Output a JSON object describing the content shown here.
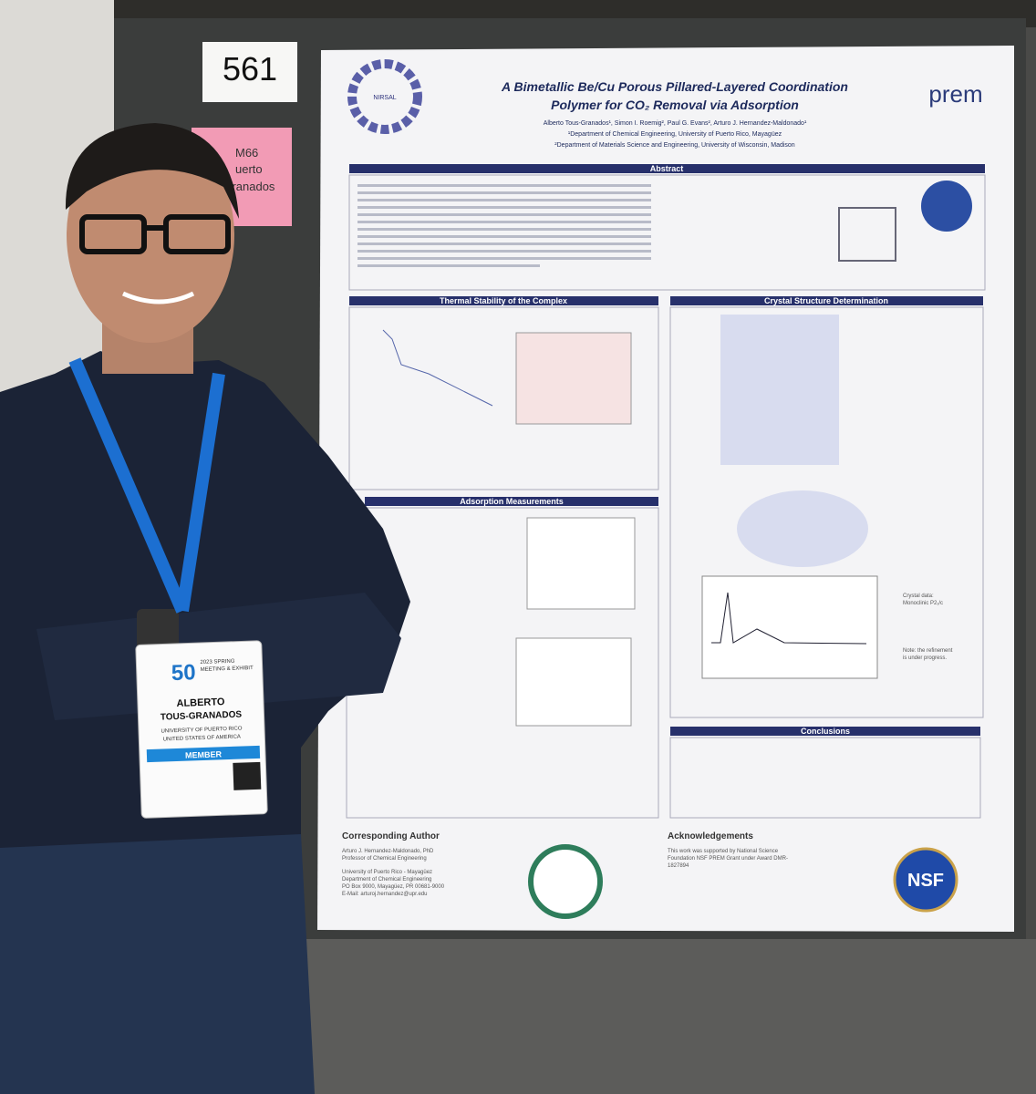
{
  "booth_number": "561",
  "pink_sign": [
    "M66",
    "uerto",
    "-Granados"
  ],
  "poster": {
    "title": [
      "A Bimetallic Be/Cu Porous Pillared-Layered Coordination",
      "Polymer for CO₂ Removal via Adsorption"
    ],
    "authors": "Alberto Tous-Granados¹, Simon I. Roemig², Paul G. Evans², Arturo J. Hernandez-Maldonado¹",
    "affiliations": [
      "¹Department of Chemical Engineering, University of Puerto Rico, Mayagüez",
      "²Department of Materials Science and Engineering, University of Wisconsin, Madison"
    ],
    "logo_left": "NIRSAL",
    "logo_right": "prem",
    "sections": {
      "abstract": "Abstract",
      "thermal": "Thermal Stability of the Complex",
      "crystal": "Crystal Structure Determination",
      "adsorption": "Adsorption Measurements",
      "conclusions": "Conclusions"
    },
    "crystal_note": [
      "Crystal data:",
      "Monoclinic P2₁/c",
      "Note: the refinement",
      "is under progress."
    ],
    "corresponding_author": {
      "heading": "Corresponding Author",
      "lines": [
        "Arturo J. Hernandez-Maldonado, PhD",
        "Professor of Chemical Engineering",
        "University of Puerto Rico - Mayagüez",
        "Department of Chemical Engineering",
        "PO Box 9000, Mayagüez, PR 00681-9000",
        "E-Mail: arturoj.hernandez@upr.edu"
      ]
    },
    "acknowledgements": {
      "heading": "Acknowledgements",
      "lines": [
        "This work was supported by National Science",
        "Foundation NSF PREM Grant under Award DMR-",
        "1827894"
      ]
    },
    "nsf": "NSF"
  },
  "badge": {
    "anniversary": "50",
    "event": [
      "2023 SPRING",
      "MEETING & EXHIBIT"
    ],
    "first_name": "ALBERTO",
    "last_name": "TOUS-GRANADOS",
    "organization": "UNIVERSITY OF PUERTO RICO",
    "country": "UNITED STATES OF AMERICA",
    "role": "MEMBER"
  }
}
